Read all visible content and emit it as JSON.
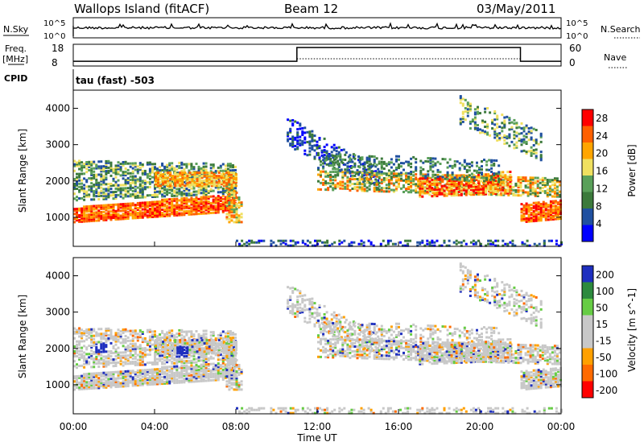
{
  "header": {
    "station": "Wallops Island (fitACF)",
    "beam": "Beam 12",
    "date": "03/May/2011"
  },
  "left_labels": {
    "nsky": "N.Sky",
    "freq": "Freq.",
    "freq_unit": "[MHz]",
    "cpid": "CPID"
  },
  "right_labels": {
    "nsearch": "N.Search",
    "nave": "Nave"
  },
  "cpid_text": "tau (fast) -503",
  "noise_axis": {
    "top": "10^5",
    "bottom": "10^0"
  },
  "freq_axis": {
    "top": "18",
    "bottom": "8"
  },
  "nave_axis": {
    "top": "60",
    "bottom": "0"
  },
  "colors": {
    "power": [
      "#0000ff",
      "#2050a0",
      "#3c7a3c",
      "#5aa05a",
      "#f0e060",
      "#ffa500",
      "#ff6000",
      "#ff0000"
    ],
    "velocity": [
      "#ff0000",
      "#ff6a00",
      "#ffa000",
      "#c8c8c8",
      "#c8c8c8",
      "#66cc44",
      "#2d8a3e",
      "#1e2fbf"
    ]
  },
  "chart_data": [
    {
      "type": "heatmap",
      "title": "",
      "xlabel": "Time UT",
      "ylabel": "Slant Range [km]",
      "x_ticks": [
        "00:00",
        "04:00",
        "08:00",
        "12:00",
        "16:00",
        "20:00",
        "00:00"
      ],
      "y_ticks": [
        1000,
        2000,
        3000,
        4000
      ],
      "xlim_hours": [
        0,
        24
      ],
      "ylim_km": [
        200,
        4500
      ],
      "colorbar": {
        "label": "Power [dB]",
        "ticks": [
          4,
          8,
          12,
          16,
          20,
          24,
          28
        ],
        "range": [
          0,
          30
        ]
      }
    },
    {
      "type": "heatmap",
      "title": "",
      "xlabel": "Time UT",
      "ylabel": "Slant Range [km]",
      "x_ticks": [
        "00:00",
        "04:00",
        "08:00",
        "12:00",
        "16:00",
        "20:00",
        "00:00"
      ],
      "y_ticks": [
        1000,
        2000,
        3000,
        4000
      ],
      "xlim_hours": [
        0,
        24
      ],
      "ylim_km": [
        200,
        4500
      ],
      "colorbar": {
        "label": "Velocity [m s^-1]",
        "ticks": [
          200,
          100,
          50,
          15,
          -15,
          -50,
          -100,
          -200
        ]
      }
    },
    {
      "type": "line",
      "title": "",
      "series": [
        {
          "name": "Freq.",
          "x": [
            0,
            11,
            11,
            22,
            22,
            24
          ],
          "y": [
            10.2,
            10.2,
            16.5,
            16.5,
            10.2,
            10.2
          ]
        }
      ]
    }
  ],
  "x_title": "Time UT"
}
